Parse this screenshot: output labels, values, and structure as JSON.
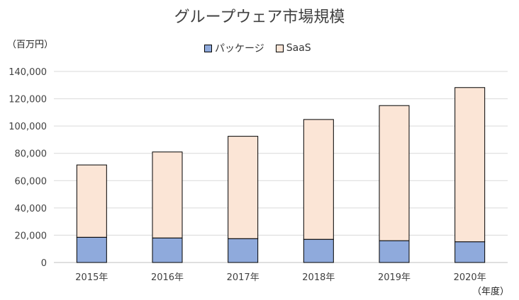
{
  "chart_data": {
    "type": "bar",
    "stacked": true,
    "title": "グループウェア市場規模",
    "ylabel": "（百万円）",
    "xlabel": "（年度）",
    "categories": [
      "2015年",
      "2016年",
      "2017年",
      "2018年",
      "2019年",
      "2020年"
    ],
    "series": [
      {
        "name": "パッケージ",
        "values": [
          18500,
          18000,
          17500,
          17000,
          16000,
          15200
        ],
        "color": "#8faadc"
      },
      {
        "name": "SaaS",
        "values": [
          53000,
          63000,
          75000,
          87800,
          99000,
          113000
        ],
        "color": "#fbe5d6"
      }
    ],
    "ylim": [
      0,
      140000
    ],
    "yticks": [
      "0",
      "20,000",
      "40,000",
      "60,000",
      "80,000",
      "100,000",
      "120,000",
      "140,000"
    ],
    "grid": true,
    "legend_position": "top"
  }
}
